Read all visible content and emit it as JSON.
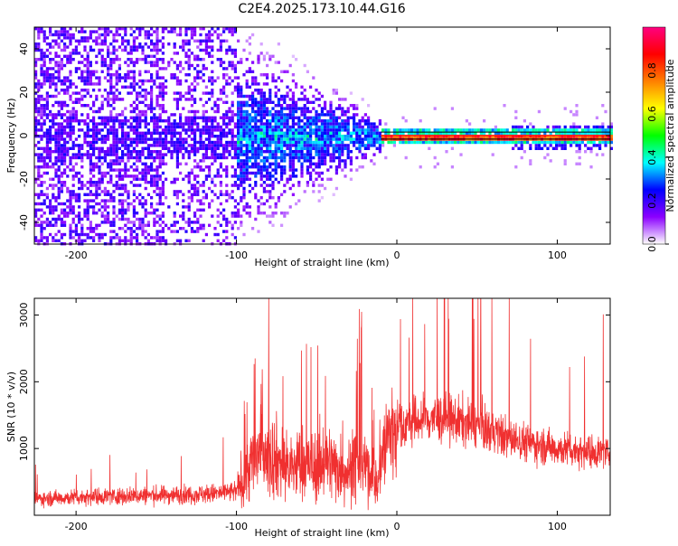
{
  "title": "C2E4.2025.173.10.44.G16",
  "chart_data": [
    {
      "type": "heatmap",
      "title": "C2E4.2025.173.10.44.G16",
      "xlabel": "Height of straight line (km)",
      "ylabel": "Frequency (Hz)",
      "xlim": [
        -226,
        133
      ],
      "ylim": [
        -50,
        50
      ],
      "x_ticks": [
        -200,
        -100,
        0,
        100
      ],
      "x_tick_labels": [
        "-200",
        "-100",
        "0",
        "100"
      ],
      "y_ticks": [
        -40,
        -20,
        0,
        20,
        40
      ],
      "y_tick_labels": [
        "-40",
        "-20",
        "0",
        "20",
        "40"
      ],
      "colorbar": {
        "label": "Normalized spectral amplitude",
        "range": [
          0,
          1
        ],
        "ticks": [
          0.0,
          0.2,
          0.4,
          0.6,
          0.8
        ],
        "tick_labels": [
          "0.0",
          "0.2",
          "0.4",
          "0.6",
          "0.8"
        ],
        "colors": [
          "#ffffff",
          "#8b00ff",
          "#0000ff",
          "#00ffff",
          "#00ff00",
          "#ffff00",
          "#ff8000",
          "#ff0000",
          "#ff0080"
        ]
      },
      "features": {
        "broadband_noise_range": [
          -226,
          -100
        ],
        "carrier_band_frequency": 0,
        "carrier_onset": -10
      }
    },
    {
      "type": "line",
      "xlabel": "Height of straight line (km)",
      "ylabel": "SNR (10 * v/v)",
      "xlim": [
        -226,
        133
      ],
      "ylim": [
        0,
        3250
      ],
      "x_ticks": [
        -200,
        -100,
        0,
        100
      ],
      "x_tick_labels": [
        "-200",
        "-100",
        "0",
        "100"
      ],
      "y_ticks": [
        1000,
        2000,
        3000
      ],
      "y_tick_labels": [
        "1000",
        "2000",
        "3000"
      ],
      "color": "#f03030",
      "series": [
        {
          "x": [
            -226,
            -210,
            -190,
            -170,
            -150,
            -130,
            -110,
            -100,
            -95,
            -90,
            -85,
            -80,
            -75,
            -70,
            -65,
            -60,
            -55,
            -50,
            -45,
            -40,
            -35,
            -30,
            -25,
            -20,
            -15,
            -12,
            -10,
            -5,
            0,
            5,
            10,
            20,
            30,
            40,
            50,
            60,
            70,
            80,
            90,
            100,
            110,
            120,
            133
          ],
          "y": [
            250,
            260,
            280,
            290,
            300,
            310,
            330,
            360,
            600,
            800,
            900,
            950,
            850,
            750,
            700,
            800,
            750,
            700,
            850,
            750,
            700,
            650,
            750,
            700,
            650,
            400,
            900,
            1200,
            1350,
            1350,
            1400,
            1450,
            1450,
            1400,
            1350,
            1250,
            1150,
            1100,
            1050,
            1000,
            980,
            950,
            950
          ]
        }
      ]
    }
  ]
}
